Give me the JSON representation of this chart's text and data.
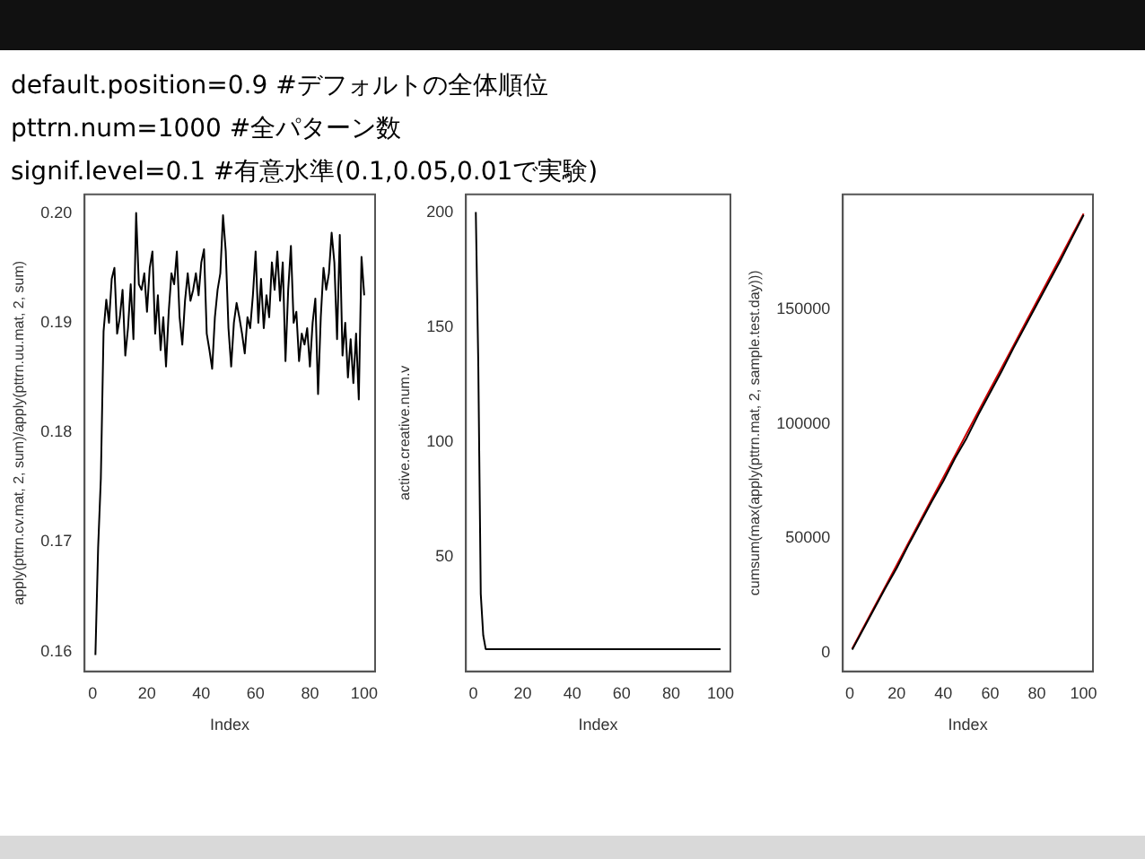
{
  "chart_data": [
    {
      "type": "line",
      "annotations": [
        "default.position=0.9   #デフォルトの全体順位",
        "pttrn.num=1000     #全パターン数",
        "signif.level=0.1  #有意水準(0.1,0.05,0.01で実験)"
      ],
      "xlabel": "Index",
      "ylabel": "apply(pttrn.cv.mat, 2, sum)/apply(pttrn.uu.mat, 2, sum)",
      "x": [
        1,
        2,
        3,
        4,
        5,
        6,
        7,
        8,
        9,
        10,
        11,
        12,
        13,
        14,
        15,
        16,
        17,
        18,
        19,
        20,
        21,
        22,
        23,
        24,
        25,
        26,
        27,
        28,
        29,
        30,
        31,
        32,
        33,
        34,
        35,
        36,
        37,
        38,
        39,
        40,
        41,
        42,
        43,
        44,
        45,
        46,
        47,
        48,
        49,
        50,
        51,
        52,
        53,
        54,
        55,
        56,
        57,
        58,
        59,
        60,
        61,
        62,
        63,
        64,
        65,
        66,
        67,
        68,
        69,
        70,
        71,
        72,
        73,
        74,
        75,
        76,
        77,
        78,
        79,
        80,
        81,
        82,
        83,
        84,
        85,
        86,
        87,
        88,
        89,
        90,
        91,
        92,
        93,
        94,
        95,
        96,
        97,
        98,
        99,
        100
      ],
      "series": [
        {
          "color": "#000000",
          "values": [
            0.1597,
            0.1695,
            0.1758,
            0.1892,
            0.1921,
            0.19,
            0.194,
            0.195,
            0.189,
            0.1905,
            0.193,
            0.187,
            0.1895,
            0.1935,
            0.1885,
            0.2,
            0.1935,
            0.193,
            0.1945,
            0.191,
            0.195,
            0.1965,
            0.189,
            0.1925,
            0.1875,
            0.1905,
            0.186,
            0.191,
            0.1945,
            0.1935,
            0.1965,
            0.1905,
            0.188,
            0.192,
            0.1945,
            0.192,
            0.193,
            0.1945,
            0.1925,
            0.1955,
            0.1967,
            0.189,
            0.1875,
            0.1858,
            0.1905,
            0.193,
            0.1945,
            0.1998,
            0.1965,
            0.1895,
            0.186,
            0.19,
            0.1918,
            0.1905,
            0.189,
            0.1872,
            0.1905,
            0.1895,
            0.1925,
            0.1965,
            0.19,
            0.194,
            0.1895,
            0.1925,
            0.1905,
            0.1955,
            0.193,
            0.1965,
            0.192,
            0.1955,
            0.1865,
            0.193,
            0.197,
            0.19,
            0.191,
            0.1865,
            0.189,
            0.188,
            0.1895,
            0.186,
            0.19,
            0.1922,
            0.1835,
            0.1905,
            0.195,
            0.193,
            0.1945,
            0.1982,
            0.1955,
            0.1885,
            0.198,
            0.187,
            0.19,
            0.185,
            0.1885,
            0.1845,
            0.189,
            0.183,
            0.196,
            0.1925
          ]
        }
      ],
      "xlim": [
        -3,
        104
      ],
      "xticks": [
        0,
        20,
        40,
        60,
        80,
        100
      ],
      "ylim": [
        0.1582,
        0.2017
      ],
      "yticks": [
        0.16,
        0.17,
        0.18,
        0.19,
        {
          "value": 0.2,
          "label": "0.20"
        }
      ]
    },
    {
      "type": "line",
      "xlabel": "Index",
      "ylabel": "active.creative.num.v",
      "x": [
        1,
        2,
        3,
        4,
        5,
        100
      ],
      "series": [
        {
          "color": "#000000",
          "values": [
            200,
            134,
            34,
            16,
            10,
            10
          ]
        }
      ],
      "xlim": [
        -3,
        104
      ],
      "xticks": [
        0,
        20,
        40,
        60,
        80,
        100
      ],
      "ylim": [
        0.3,
        207.7
      ],
      "yticks": [
        50,
        100,
        150,
        200
      ]
    },
    {
      "type": "line",
      "xlabel": "Index",
      "ylabel": "cumsum(max(apply(pttrn.mat, 2, sample.test.day)))",
      "x": [
        1,
        5,
        10,
        15,
        20,
        25,
        30,
        35,
        40,
        45,
        50,
        55,
        60,
        65,
        70,
        75,
        80,
        85,
        90,
        95,
        100
      ],
      "series": [
        {
          "color": "#000000",
          "values": [
            1500,
            9000,
            18500,
            28000,
            37000,
            47000,
            56500,
            66000,
            75000,
            85000,
            93800,
            104000,
            113500,
            123000,
            133000,
            142500,
            152000,
            161500,
            171000,
            181000,
            191000
          ]
        },
        {
          "color": "#cc0000",
          "values": [
            1900,
            9600,
            19200,
            28700,
            38300,
            47900,
            57500,
            67100,
            76600,
            86200,
            95800,
            105400,
            115000,
            124500,
            134100,
            143700,
            153300,
            162900,
            172400,
            182000,
            191600
          ]
        }
      ],
      "xlim": [
        -3,
        104
      ],
      "xticks": [
        0,
        20,
        40,
        60,
        80,
        100
      ],
      "ylim": [
        -8000,
        200000
      ],
      "yticks": [
        0,
        50000,
        100000,
        150000
      ]
    }
  ]
}
